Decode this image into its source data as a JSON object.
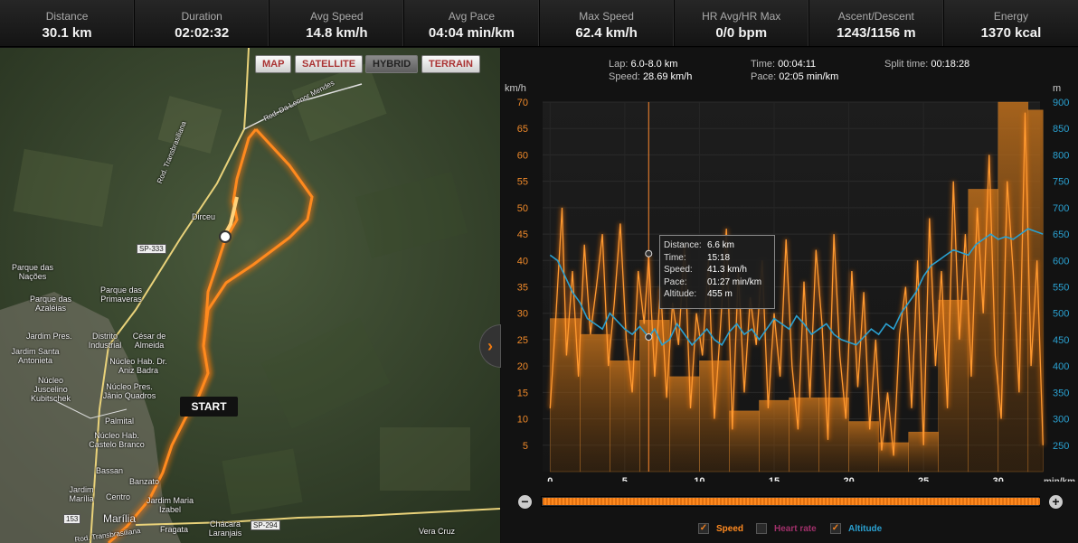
{
  "stats": [
    {
      "label": "Distance",
      "value": "30.1 km"
    },
    {
      "label": "Duration",
      "value": "02:02:32"
    },
    {
      "label": "Avg Speed",
      "value": "14.8 km/h"
    },
    {
      "label": "Avg Pace",
      "value": "04:04 min/km"
    },
    {
      "label": "Max Speed",
      "value": "62.4 km/h"
    },
    {
      "label": "HR Avg/HR Max",
      "value": "0/0 bpm"
    },
    {
      "label": "Ascent/Descent",
      "value": "1243/1156 m"
    },
    {
      "label": "Energy",
      "value": "1370 kcal"
    }
  ],
  "map": {
    "types": [
      "MAP",
      "SATELLITE",
      "HYBRID",
      "TERRAIN"
    ],
    "active_type": "HYBRID",
    "start_label": "START",
    "places": [
      "Dirceu",
      "Parque das Nações",
      "Parque das Primaveras",
      "Parque das Azaléias",
      "Jardim Pres.",
      "Distrito Industrial",
      "César de Almeida",
      "Jardim Santa Antonieta",
      "Núcleo Hab. Dr. Aniz Badra",
      "Núcleo Juscelino Kubitschek",
      "Núcleo Pres. Jânio Quadros",
      "Palmital",
      "Núcleo Hab. Castelo Branco",
      "Bassan",
      "Banzato",
      "Jardim Marília",
      "Centro",
      "Jardim Maria Izabel",
      "Marília",
      "Fragata",
      "Chácara Laranjais",
      "Vera Cruz"
    ],
    "roads": [
      "Rod. Transbrasiliana",
      "Rod. Da Leonor Mendes",
      "Rod. Transbrasiliana"
    ],
    "shields": [
      "SP-333",
      "SP-294",
      "153"
    ],
    "toggle_glyph": "›"
  },
  "lap_info": {
    "lap_label": "Lap:",
    "lap_value": "6.0-8.0 km",
    "speed_label": "Speed:",
    "speed_value": "28.69 km/h",
    "time_label": "Time:",
    "time_value": "00:04:11",
    "pace_label": "Pace:",
    "pace_value": "02:05 min/km",
    "split_label": "Split time:",
    "split_value": "00:18:28"
  },
  "tooltip": {
    "rows": [
      {
        "k": "Distance:",
        "v": "6.6 km"
      },
      {
        "k": "Time:",
        "v": "15:18"
      },
      {
        "k": "Speed:",
        "v": "41.3 km/h"
      },
      {
        "k": "Pace:",
        "v": "01:27 min/km"
      },
      {
        "k": "Altitude:",
        "v": "455 m"
      }
    ]
  },
  "legend": [
    {
      "label": "Speed",
      "checked": true,
      "color": "#ff8a20"
    },
    {
      "label": "Heart rate",
      "checked": false,
      "color": "#a0306a"
    },
    {
      "label": "Altitude",
      "checked": true,
      "color": "#2aa0d0"
    }
  ],
  "slider": {
    "zoom_out": "−",
    "zoom_in": "+",
    "fraction": 1.0
  },
  "chart_data": {
    "type": "area",
    "ylabel_left": "km/h",
    "ylabel_right": "m",
    "xlabel": "min/km",
    "x_ticks": [
      0,
      5,
      10,
      15,
      20,
      25,
      30
    ],
    "x_range": [
      0,
      32
    ],
    "y_left_ticks": [
      5,
      10,
      15,
      20,
      25,
      30,
      35,
      40,
      45,
      50,
      55,
      60,
      65,
      70
    ],
    "y_left_range": [
      0,
      70
    ],
    "y_right_ticks": [
      250,
      300,
      350,
      400,
      450,
      500,
      550,
      600,
      650,
      700,
      750,
      800,
      850,
      900
    ],
    "y_right_range": [
      200,
      900
    ],
    "cursor_x": 6.6,
    "lap_bars": [
      {
        "x0": 0,
        "x1": 2,
        "speed": 29
      },
      {
        "x0": 2,
        "x1": 4,
        "speed": 26
      },
      {
        "x0": 4,
        "x1": 6,
        "speed": 21
      },
      {
        "x0": 6,
        "x1": 8,
        "speed": 28.7
      },
      {
        "x0": 8,
        "x1": 10,
        "speed": 18
      },
      {
        "x0": 10,
        "x1": 12,
        "speed": 21
      },
      {
        "x0": 12,
        "x1": 14,
        "speed": 11.5
      },
      {
        "x0": 14,
        "x1": 16,
        "speed": 13.5
      },
      {
        "x0": 16,
        "x1": 18,
        "speed": 14
      },
      {
        "x0": 18,
        "x1": 20,
        "speed": 14
      },
      {
        "x0": 20,
        "x1": 22,
        "speed": 9.5
      },
      {
        "x0": 22,
        "x1": 24,
        "speed": 5.5
      },
      {
        "x0": 24,
        "x1": 26,
        "speed": 7.5
      },
      {
        "x0": 26,
        "x1": 28,
        "speed": 32.5
      },
      {
        "x0": 28,
        "x1": 30,
        "speed": 53.5
      },
      {
        "x0": 30,
        "x1": 32,
        "speed": 70
      },
      {
        "x0": 32,
        "x1": 33,
        "speed": 68.5
      }
    ],
    "speed_series": {
      "name": "Speed",
      "x": [
        0,
        0.4,
        0.8,
        1.1,
        1.5,
        1.9,
        2.3,
        2.7,
        3.1,
        3.5,
        3.9,
        4.3,
        4.7,
        5.1,
        5.5,
        5.9,
        6.3,
        6.6,
        7.0,
        7.4,
        7.8,
        8.2,
        8.6,
        9.0,
        9.4,
        9.8,
        10.2,
        10.6,
        11.0,
        11.4,
        11.8,
        12.2,
        12.6,
        13.0,
        13.4,
        13.8,
        14.2,
        14.6,
        15.0,
        15.4,
        15.8,
        16.2,
        16.6,
        17.0,
        17.4,
        17.8,
        18.2,
        18.6,
        19.0,
        19.4,
        19.8,
        20.2,
        20.6,
        21.0,
        21.4,
        21.8,
        22.2,
        22.6,
        23.0,
        23.4,
        23.8,
        24.2,
        24.6,
        25.0,
        25.4,
        25.8,
        26.2,
        26.6,
        27.0,
        27.4,
        27.8,
        28.2,
        28.6,
        29.0,
        29.4,
        29.8,
        30.2,
        30.6,
        31.0,
        31.4,
        31.8,
        32.2,
        32.6,
        33.0
      ],
      "values": [
        12,
        30,
        50,
        22,
        38,
        18,
        43,
        26,
        35,
        45,
        20,
        32,
        47,
        25,
        15,
        38,
        28,
        41,
        18,
        35,
        14,
        32,
        24,
        43,
        12,
        30,
        22,
        40,
        10,
        27,
        46,
        8,
        38,
        15,
        33,
        24,
        40,
        12,
        30,
        18,
        44,
        20,
        8,
        36,
        14,
        42,
        28,
        6,
        45,
        22,
        10,
        38,
        16,
        34,
        8,
        25,
        4,
        15,
        3,
        26,
        35,
        12,
        40,
        5,
        48,
        20,
        38,
        12,
        55,
        25,
        45,
        18,
        50,
        30,
        60,
        22,
        10,
        55,
        38,
        15,
        68,
        20,
        40,
        5
      ]
    },
    "altitude_series": {
      "name": "Altitude",
      "x": [
        0,
        0.5,
        1,
        1.5,
        2,
        2.5,
        3,
        3.5,
        4,
        4.5,
        5,
        5.5,
        6,
        6.6,
        7,
        7.5,
        8,
        8.5,
        9,
        9.5,
        10,
        10.5,
        11,
        11.5,
        12,
        12.5,
        13,
        13.5,
        14,
        14.5,
        15,
        15.5,
        16,
        16.5,
        17,
        17.5,
        18,
        18.5,
        19,
        19.5,
        20,
        20.5,
        21,
        21.5,
        22,
        22.5,
        23,
        23.5,
        24,
        24.5,
        25,
        25.5,
        26,
        26.5,
        27,
        27.5,
        28,
        28.5,
        29,
        29.5,
        30,
        30.5,
        31,
        31.5,
        32,
        32.5,
        33
      ],
      "values": [
        610,
        600,
        570,
        540,
        520,
        490,
        480,
        470,
        500,
        485,
        470,
        460,
        475,
        455,
        470,
        440,
        450,
        480,
        460,
        440,
        455,
        470,
        450,
        440,
        465,
        480,
        460,
        470,
        450,
        470,
        490,
        480,
        470,
        495,
        480,
        460,
        470,
        480,
        460,
        450,
        445,
        440,
        455,
        470,
        460,
        480,
        470,
        500,
        520,
        540,
        570,
        590,
        600,
        610,
        620,
        615,
        610,
        630,
        640,
        650,
        640,
        645,
        640,
        650,
        660,
        655,
        650
      ]
    }
  }
}
